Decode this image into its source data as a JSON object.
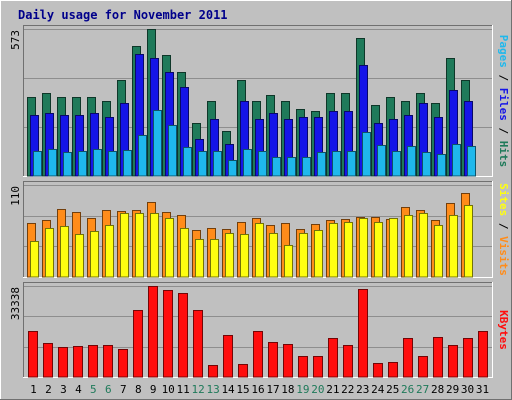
{
  "chart_data": {
    "type": "bar",
    "title": "Daily usage for November 2011",
    "categories": [
      "1",
      "2",
      "3",
      "4",
      "5",
      "6",
      "7",
      "8",
      "9",
      "10",
      "11",
      "12",
      "13",
      "14",
      "15",
      "16",
      "17",
      "18",
      "19",
      "20",
      "21",
      "22",
      "23",
      "24",
      "25",
      "26",
      "27",
      "28",
      "29",
      "30",
      "31"
    ],
    "weekend_days": [
      "5",
      "6",
      "12",
      "13",
      "19",
      "20",
      "26",
      "27"
    ],
    "panels": [
      {
        "name": "hits-files-pages",
        "y_max_label": "573",
        "ylim": [
          0,
          573
        ],
        "axis_labels": [
          "Pages",
          "Files",
          "Hits"
        ],
        "series": [
          {
            "name": "Hits",
            "color": "#1f7a5a",
            "values": [
              306,
              322,
              306,
              306,
              306,
              291,
              375,
              506,
              573,
              471,
              406,
              207,
              291,
              176,
              375,
              291,
              315,
              291,
              261,
              253,
              322,
              322,
              538,
              276,
              306,
              291,
              322,
              284,
              460,
              375,
              0
            ]
          },
          {
            "name": "Files",
            "color": "#1515e8",
            "values": [
              237,
              245,
              237,
              237,
              245,
              230,
              283,
              475,
              459,
              406,
              345,
              146,
              222,
              123,
              291,
              222,
              245,
              222,
              230,
              230,
              253,
              253,
              433,
              207,
              222,
              237,
              283,
              230,
              337,
              291,
              0
            ]
          },
          {
            "name": "Pages",
            "color": "#1fb8ec",
            "values": [
              99,
              106,
              92,
              99,
              107,
              99,
              102,
              161,
              257,
              198,
              112,
              99,
              99,
              61,
              107,
              99,
              76,
              76,
              76,
              92,
              99,
              99,
              172,
              120,
              99,
              115,
              92,
              84,
              123,
              115,
              0
            ]
          }
        ]
      },
      {
        "name": "visits-sites",
        "y_max_label": "110",
        "ylim": [
          0,
          110
        ],
        "axis_labels": [
          "Sites",
          "Visits"
        ],
        "series": [
          {
            "name": "Visits",
            "color": "#ff8c1a",
            "values": [
              64,
              68,
              81,
              78,
              70,
              80,
              79,
              80,
              90,
              78,
              74,
              56,
              58,
              57,
              66,
              70,
              62,
              65,
              57,
              63,
              68,
              69,
              72,
              72,
              69,
              84,
              80,
              68,
              88,
              101,
              0
            ]
          },
          {
            "name": "Sites",
            "color": "#ffff10",
            "values": [
              43,
              59,
              61,
              52,
              55,
              62,
              77,
              76,
              76,
              71,
              59,
              45,
              46,
              53,
              52,
              65,
              53,
              38,
              53,
              56,
              65,
              66,
              70,
              66,
              70,
              74,
              77,
              62,
              74,
              86,
              0
            ]
          }
        ]
      },
      {
        "name": "kbytes",
        "y_max_label": "33338",
        "ylim": [
          0,
          33338
        ],
        "axis_labels": [
          "KBytes"
        ],
        "series": [
          {
            "name": "KBytes",
            "color": "#ff0d0d",
            "values": [
              16800,
              12400,
              11000,
              11400,
              11900,
              11900,
              10200,
              24500,
              33338,
              31800,
              30600,
              24600,
              4300,
              15300,
              4800,
              17000,
              12700,
              12100,
              7700,
              7600,
              14400,
              11600,
              32300,
              5000,
              5400,
              14300,
              7800,
              14500,
              11700,
              14400,
              16700
            ]
          }
        ]
      }
    ]
  }
}
